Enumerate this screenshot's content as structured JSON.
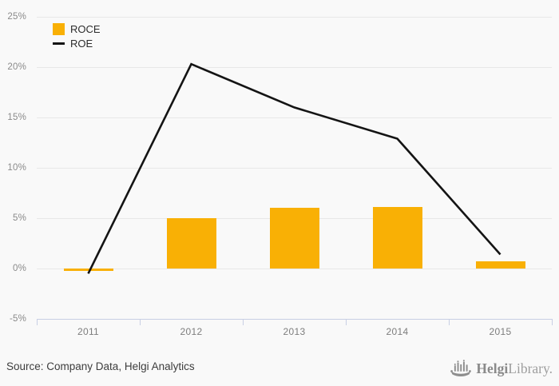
{
  "chart_data": {
    "type": "bar",
    "subtype": "bar-and-line-combo",
    "categories": [
      "2011",
      "2012",
      "2013",
      "2014",
      "2015"
    ],
    "series": [
      {
        "name": "ROCE",
        "type": "bar",
        "color": "#f9b005",
        "values": [
          -0.2,
          5.0,
          6.0,
          6.1,
          0.7
        ]
      },
      {
        "name": "ROE",
        "type": "line",
        "color": "#141414",
        "values": [
          -0.5,
          20.3,
          16.0,
          12.9,
          1.4
        ]
      }
    ],
    "title": "",
    "xlabel": "",
    "ylabel": "",
    "ylim": [
      -5,
      25
    ],
    "yticks": [
      25,
      20,
      15,
      10,
      5,
      0,
      -5
    ],
    "ytick_labels": [
      "25%",
      "20%",
      "15%",
      "10%",
      "5%",
      "0%",
      "-5%"
    ],
    "grid": true,
    "legend_position": "top-left"
  },
  "colors": {
    "background": "#f9f9f9",
    "grid": "#e8e8e8",
    "axis": "#c8cfe4",
    "bar": "#f9b005",
    "line": "#141414",
    "ytick_label": "#8a8a8a",
    "xtick_label": "#7d7d7d",
    "source_text": "#3d3d3d",
    "logo_gray": "#8e8e8e"
  },
  "footer": {
    "source": "Source: Company Data, Helgi Analytics",
    "logo_brand_bold": "Helgi",
    "logo_brand_light": "Library."
  }
}
